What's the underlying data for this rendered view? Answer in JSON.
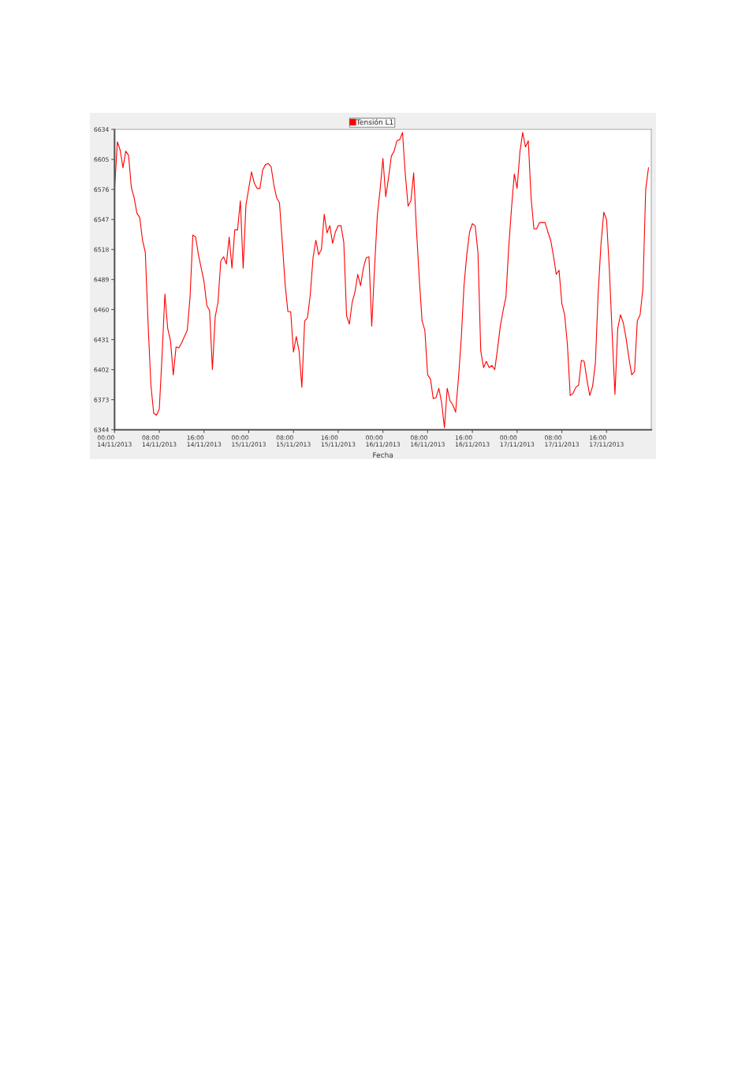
{
  "chart_data": {
    "type": "line",
    "xlabel": "Fecha",
    "legend": "top",
    "x": [
      "2013-11-14T00:00",
      "2013-11-14T00:30",
      "2013-11-14T01:00",
      "2013-11-14T01:30",
      "2013-11-14T02:00",
      "2013-11-14T02:30",
      "2013-11-14T03:00",
      "2013-11-14T03:30",
      "2013-11-14T04:00",
      "2013-11-14T04:30",
      "2013-11-14T05:00",
      "2013-11-14T05:30",
      "2013-11-14T06:00",
      "2013-11-14T06:30",
      "2013-11-14T07:00",
      "2013-11-14T07:30",
      "2013-11-14T08:00",
      "2013-11-14T08:30",
      "2013-11-14T09:00",
      "2013-11-14T09:30",
      "2013-11-14T10:00",
      "2013-11-14T10:30",
      "2013-11-14T11:00",
      "2013-11-14T11:30",
      "2013-11-14T12:00",
      "2013-11-14T12:30",
      "2013-11-14T13:00",
      "2013-11-14T13:30",
      "2013-11-14T14:00",
      "2013-11-14T14:30",
      "2013-11-14T15:00",
      "2013-11-14T15:30",
      "2013-11-14T16:00",
      "2013-11-14T16:30",
      "2013-11-14T17:00",
      "2013-11-14T17:30",
      "2013-11-14T18:00",
      "2013-11-14T18:30",
      "2013-11-14T19:00",
      "2013-11-14T19:30",
      "2013-11-14T20:00",
      "2013-11-14T20:30",
      "2013-11-14T21:00",
      "2013-11-14T21:30",
      "2013-11-14T22:00",
      "2013-11-14T22:30",
      "2013-11-14T23:00",
      "2013-11-14T23:30",
      "2013-11-15T00:00",
      "2013-11-15T00:30",
      "2013-11-15T01:00",
      "2013-11-15T01:30",
      "2013-11-15T02:00",
      "2013-11-15T02:30",
      "2013-11-15T03:00",
      "2013-11-15T03:30",
      "2013-11-15T04:00",
      "2013-11-15T04:30",
      "2013-11-15T05:00",
      "2013-11-15T05:30",
      "2013-11-15T06:00",
      "2013-11-15T06:30",
      "2013-11-15T07:00",
      "2013-11-15T07:30",
      "2013-11-15T08:00",
      "2013-11-15T08:30",
      "2013-11-15T09:00",
      "2013-11-15T09:30",
      "2013-11-15T10:00",
      "2013-11-15T10:30",
      "2013-11-15T11:00",
      "2013-11-15T11:30",
      "2013-11-15T12:00",
      "2013-11-15T12:30",
      "2013-11-15T13:00",
      "2013-11-15T13:30",
      "2013-11-15T14:00",
      "2013-11-15T14:30",
      "2013-11-15T15:00",
      "2013-11-15T15:30",
      "2013-11-15T16:00",
      "2013-11-15T16:30",
      "2013-11-15T17:00",
      "2013-11-15T17:30",
      "2013-11-15T18:00",
      "2013-11-15T18:30",
      "2013-11-15T19:00",
      "2013-11-15T19:30",
      "2013-11-15T20:00",
      "2013-11-15T20:30",
      "2013-11-15T21:00",
      "2013-11-15T21:30",
      "2013-11-15T22:00",
      "2013-11-15T22:30",
      "2013-11-15T23:00",
      "2013-11-15T23:30",
      "2013-11-16T00:00",
      "2013-11-16T00:30",
      "2013-11-16T01:00",
      "2013-11-16T01:30",
      "2013-11-16T02:00",
      "2013-11-16T02:30",
      "2013-11-16T03:00",
      "2013-11-16T03:30",
      "2013-11-16T04:00",
      "2013-11-16T04:30",
      "2013-11-16T05:00",
      "2013-11-16T05:30",
      "2013-11-16T06:00",
      "2013-11-16T06:30",
      "2013-11-16T07:00",
      "2013-11-16T07:30",
      "2013-11-16T08:00",
      "2013-11-16T08:30",
      "2013-11-16T09:00",
      "2013-11-16T09:30",
      "2013-11-16T10:00",
      "2013-11-16T10:30",
      "2013-11-16T11:00",
      "2013-11-16T11:30",
      "2013-11-16T12:00",
      "2013-11-16T12:30",
      "2013-11-16T13:00",
      "2013-11-16T13:30",
      "2013-11-16T14:00",
      "2013-11-16T14:30",
      "2013-11-16T15:00",
      "2013-11-16T15:30",
      "2013-11-16T16:00",
      "2013-11-16T16:30",
      "2013-11-16T17:00",
      "2013-11-16T17:30",
      "2013-11-16T18:00",
      "2013-11-16T18:30",
      "2013-11-16T19:00",
      "2013-11-16T19:30",
      "2013-11-16T20:00",
      "2013-11-16T20:30",
      "2013-11-16T21:00",
      "2013-11-16T21:30",
      "2013-11-16T22:00",
      "2013-11-16T22:30",
      "2013-11-16T23:00",
      "2013-11-16T23:30",
      "2013-11-17T00:00",
      "2013-11-17T00:30",
      "2013-11-17T01:00",
      "2013-11-17T01:30",
      "2013-11-17T02:00",
      "2013-11-17T02:30",
      "2013-11-17T03:00",
      "2013-11-17T03:30",
      "2013-11-17T04:00",
      "2013-11-17T04:30",
      "2013-11-17T05:00",
      "2013-11-17T05:30",
      "2013-11-17T06:00",
      "2013-11-17T06:30",
      "2013-11-17T07:00",
      "2013-11-17T07:30",
      "2013-11-17T08:00",
      "2013-11-17T08:30",
      "2013-11-17T09:00",
      "2013-11-17T09:30",
      "2013-11-17T10:00",
      "2013-11-17T10:30",
      "2013-11-17T11:00",
      "2013-11-17T11:30",
      "2013-11-17T12:00",
      "2013-11-17T12:30",
      "2013-11-17T13:00",
      "2013-11-17T13:30",
      "2013-11-17T14:00",
      "2013-11-17T14:30",
      "2013-11-17T15:00",
      "2013-11-17T15:30",
      "2013-11-17T16:00",
      "2013-11-17T16:30",
      "2013-11-17T17:00",
      "2013-11-17T17:30",
      "2013-11-17T18:00",
      "2013-11-17T18:30",
      "2013-11-17T19:00",
      "2013-11-17T19:30",
      "2013-11-17T20:00",
      "2013-11-17T20:30",
      "2013-11-17T21:00",
      "2013-11-17T21:30",
      "2013-11-17T22:00",
      "2013-11-17T22:30",
      "2013-11-17T23:00",
      "2013-11-17T23:30"
    ],
    "series": [
      {
        "name": "Tensión L1",
        "color": "#ff0000",
        "values": [
          6576,
          6622,
          6614,
          6597,
          6613,
          6609,
          6578,
          6568,
          6553,
          6549,
          6527,
          6515,
          6446,
          6387,
          6360,
          6358,
          6364,
          6416,
          6475,
          6442,
          6430,
          6397,
          6424,
          6423,
          6428,
          6434,
          6440,
          6472,
          6532,
          6530,
          6513,
          6500,
          6487,
          6464,
          6459,
          6402,
          6453,
          6467,
          6507,
          6511,
          6504,
          6530,
          6500,
          6537,
          6537,
          6565,
          6500,
          6561,
          6577,
          6593,
          6582,
          6577,
          6577,
          6595,
          6600,
          6601,
          6598,
          6580,
          6568,
          6563,
          6525,
          6485,
          6458,
          6458,
          6419,
          6434,
          6420,
          6385,
          6449,
          6452,
          6474,
          6510,
          6527,
          6513,
          6518,
          6552,
          6534,
          6541,
          6524,
          6535,
          6541,
          6541,
          6525,
          6454,
          6446,
          6467,
          6477,
          6494,
          6483,
          6500,
          6510,
          6511,
          6444,
          6500,
          6551,
          6576,
          6606,
          6569,
          6587,
          6608,
          6613,
          6623,
          6624,
          6631,
          6591,
          6560,
          6565,
          6592,
          6537,
          6490,
          6449,
          6440,
          6397,
          6393,
          6374,
          6375,
          6384,
          6370,
          6346,
          6384,
          6372,
          6368,
          6361,
          6393,
          6431,
          6483,
          6513,
          6535,
          6543,
          6541,
          6515,
          6420,
          6404,
          6410,
          6404,
          6406,
          6402,
          6422,
          6444,
          6459,
          6472,
          6520,
          6558,
          6591,
          6577,
          6612,
          6631,
          6617,
          6623,
          6568,
          6538,
          6538,
          6544,
          6544,
          6544,
          6535,
          6527,
          6512,
          6494,
          6498,
          6466,
          6455,
          6426,
          6377,
          6379,
          6385,
          6387,
          6411,
          6410,
          6392,
          6377,
          6386,
          6408,
          6476,
          6523,
          6554,
          6547,
          6499,
          6437,
          6378,
          6442,
          6455,
          6447,
          6432,
          6413,
          6397,
          6400,
          6449,
          6455,
          6480,
          6576,
          6597
        ]
      }
    ],
    "xlim": [
      "2013-11-14T00:00",
      "2013-11-18T00:00"
    ],
    "xticks": [
      {
        "value": "2013-11-14T00:00",
        "label": "00:00\n14/11/2013"
      },
      {
        "value": "2013-11-14T08:00",
        "label": "08:00\n14/11/2013"
      },
      {
        "value": "2013-11-14T16:00",
        "label": "16:00\n14/11/2013"
      },
      {
        "value": "2013-11-15T00:00",
        "label": "00:00\n15/11/2013"
      },
      {
        "value": "2013-11-15T08:00",
        "label": "08:00\n15/11/2013"
      },
      {
        "value": "2013-11-15T16:00",
        "label": "16:00\n15/11/2013"
      },
      {
        "value": "2013-11-16T00:00",
        "label": "00:00\n16/11/2013"
      },
      {
        "value": "2013-11-16T08:00",
        "label": "08:00\n16/11/2013"
      },
      {
        "value": "2013-11-16T16:00",
        "label": "16:00\n16/11/2013"
      },
      {
        "value": "2013-11-17T00:00",
        "label": "00:00\n17/11/2013"
      },
      {
        "value": "2013-11-17T08:00",
        "label": "08:00\n17/11/2013"
      },
      {
        "value": "2013-11-17T16:00",
        "label": "16:00\n17/11/2013"
      }
    ],
    "ylim": [
      6344,
      6634
    ],
    "yticks": [
      6344,
      6373,
      6402,
      6431,
      6460,
      6489,
      6518,
      6547,
      6576,
      6605,
      6634
    ]
  }
}
